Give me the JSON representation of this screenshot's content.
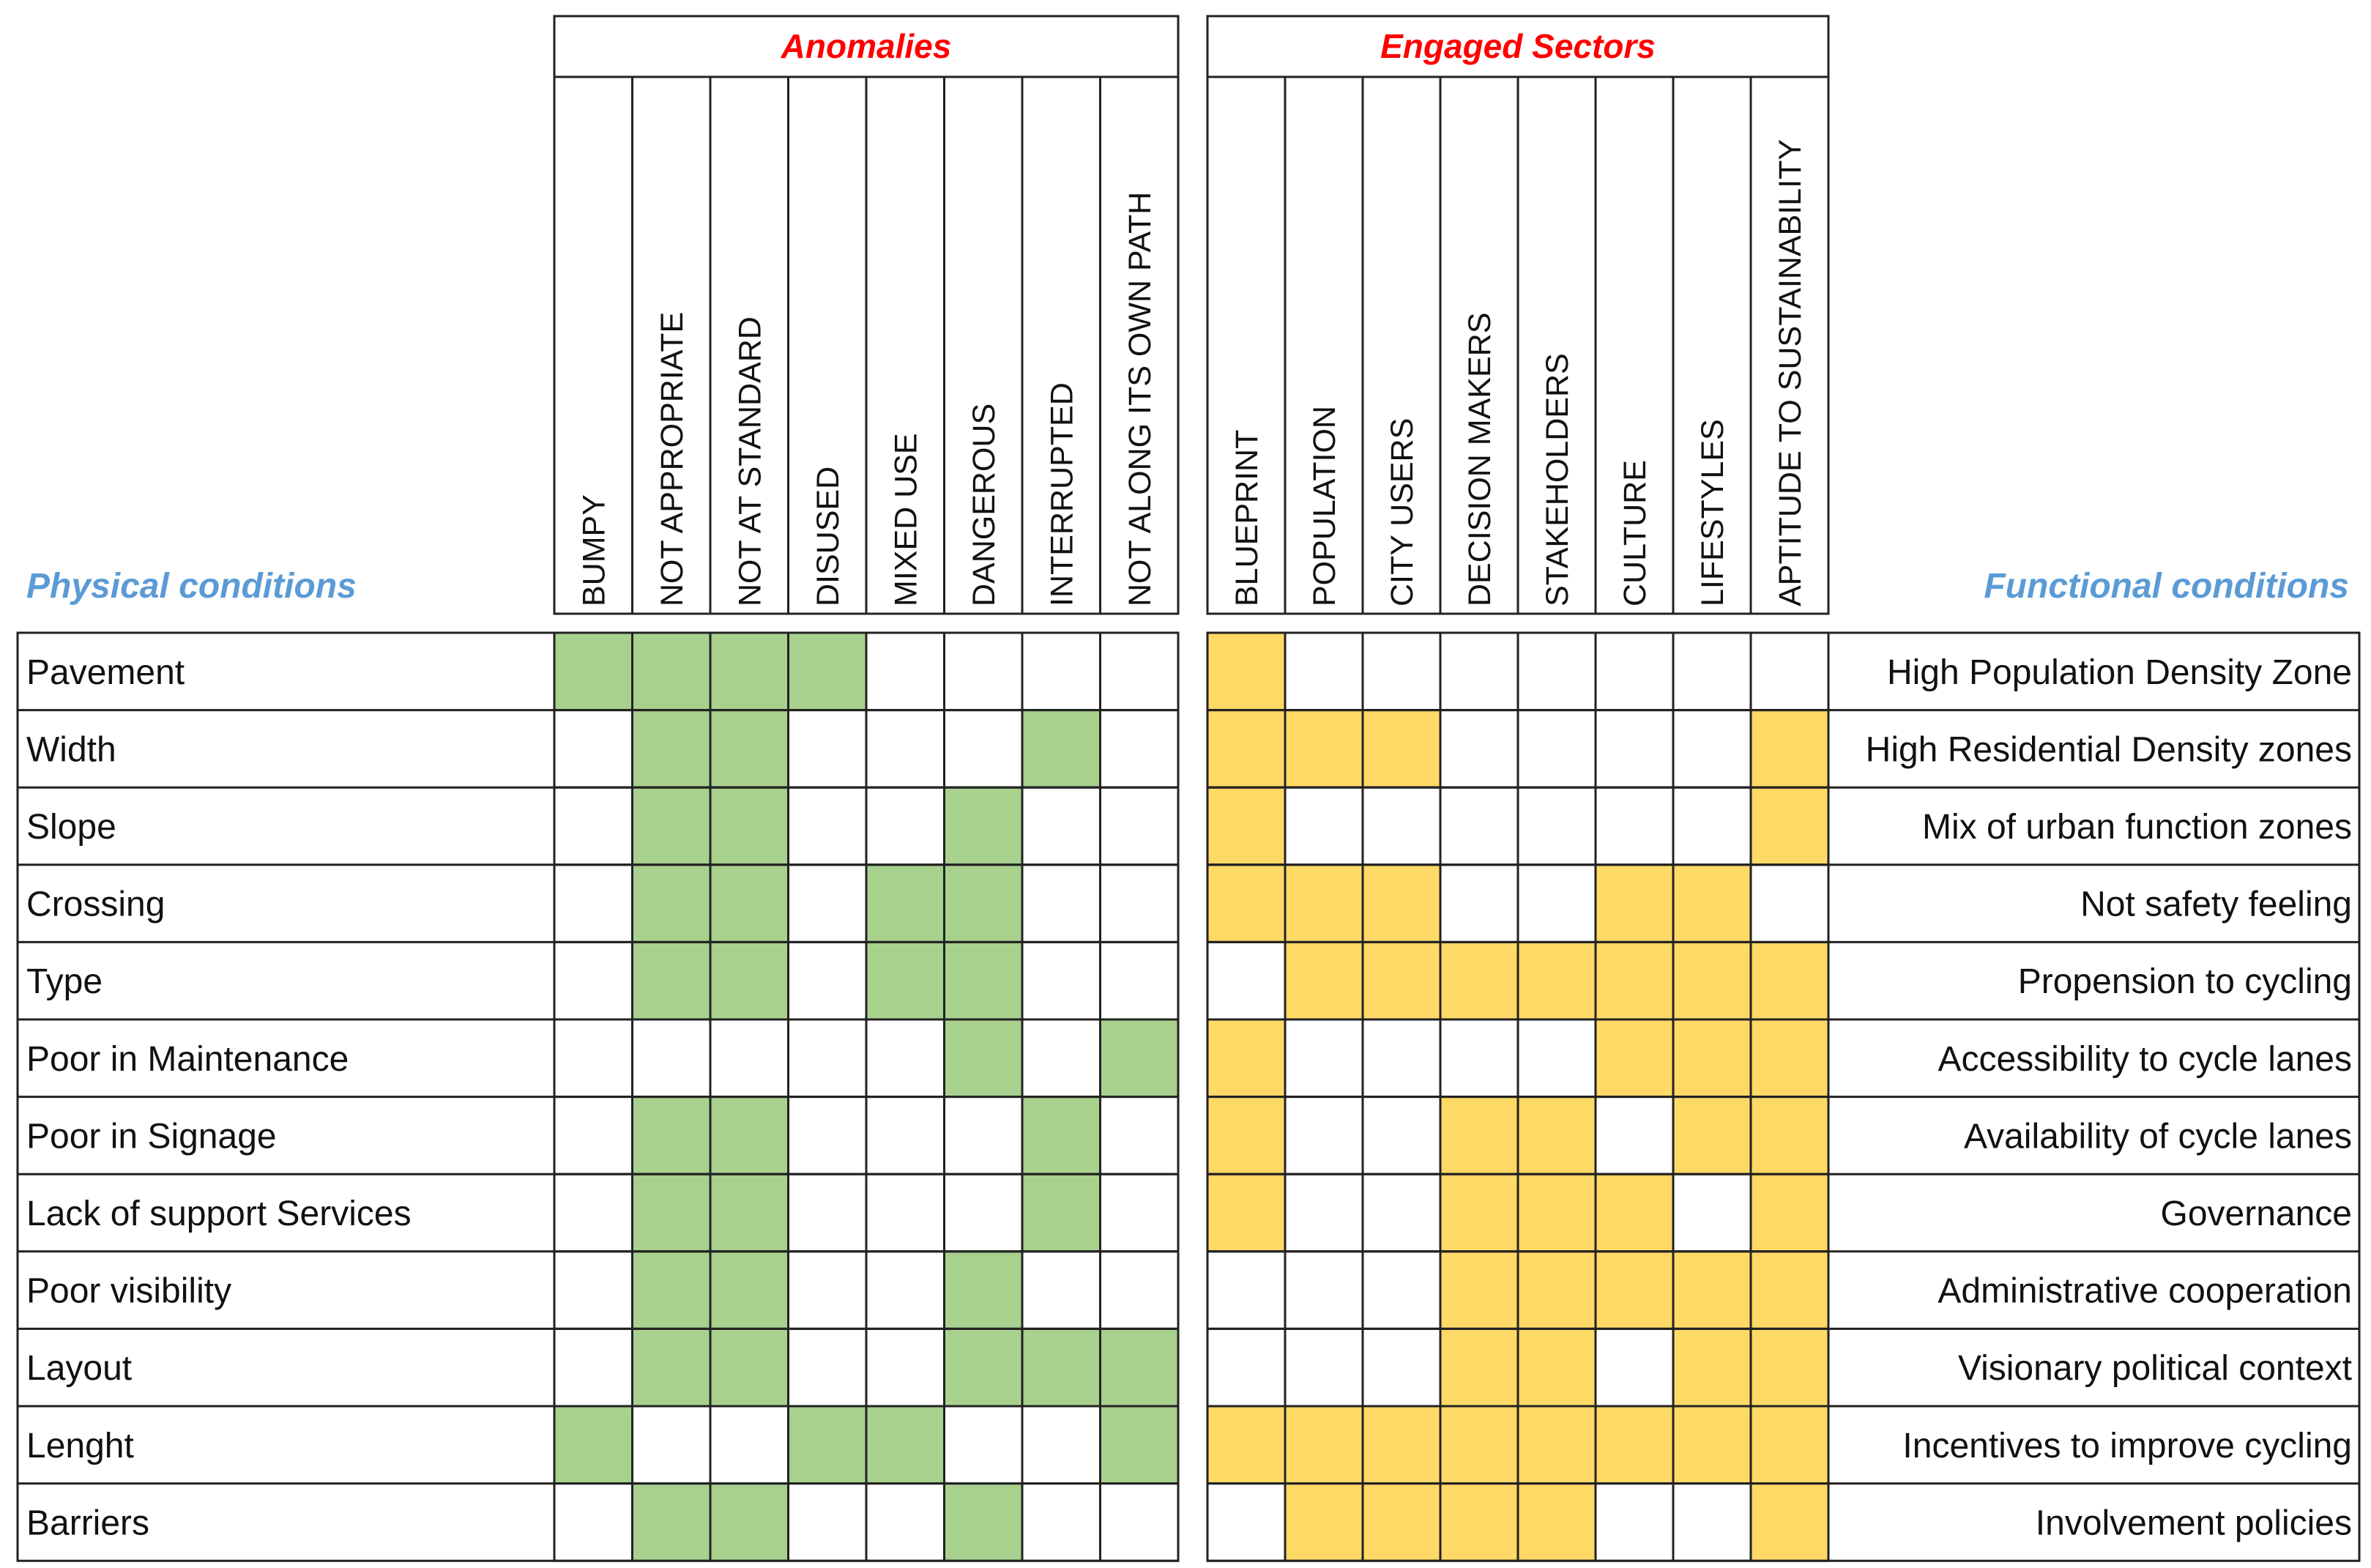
{
  "colors": {
    "anomaly_fill": "#a9d18e",
    "sector_fill": "#ffd966",
    "header_red": "#ff0000",
    "side_blue": "#5b9bd5"
  },
  "left_table": {
    "header": "Anomalies",
    "side_title": "Physical conditions",
    "columns": [
      "BUMPY",
      "NOT APPROPRIATE",
      "NOT AT STANDARD",
      "DISUSED",
      "MIXED USE",
      "DANGEROUS",
      "INTERRUPTED",
      "NOT ALONG ITS OWN PATH"
    ],
    "rows": [
      {
        "label": "Pavement",
        "cells": [
          1,
          1,
          1,
          1,
          0,
          0,
          0,
          0
        ]
      },
      {
        "label": "Width",
        "cells": [
          0,
          1,
          1,
          0,
          0,
          0,
          1,
          0
        ]
      },
      {
        "label": "Slope",
        "cells": [
          0,
          1,
          1,
          0,
          0,
          1,
          0,
          0
        ]
      },
      {
        "label": "Crossing",
        "cells": [
          0,
          1,
          1,
          0,
          1,
          1,
          0,
          0
        ]
      },
      {
        "label": "Type",
        "cells": [
          0,
          1,
          1,
          0,
          1,
          1,
          0,
          0
        ]
      },
      {
        "label": "Poor in  Maintenance",
        "cells": [
          0,
          0,
          0,
          0,
          0,
          1,
          0,
          1
        ]
      },
      {
        "label": "Poor in  Signage",
        "cells": [
          0,
          1,
          1,
          0,
          0,
          0,
          1,
          0
        ]
      },
      {
        "label": "Lack of support Services",
        "cells": [
          0,
          1,
          1,
          0,
          0,
          0,
          1,
          0
        ]
      },
      {
        "label": "Poor visibility",
        "cells": [
          0,
          1,
          1,
          0,
          0,
          1,
          0,
          0
        ]
      },
      {
        "label": "Layout",
        "cells": [
          0,
          1,
          1,
          0,
          0,
          1,
          1,
          1
        ]
      },
      {
        "label": "Lenght",
        "cells": [
          1,
          0,
          0,
          1,
          1,
          0,
          0,
          1
        ]
      },
      {
        "label": "Barriers",
        "cells": [
          0,
          1,
          1,
          0,
          0,
          1,
          0,
          0
        ]
      }
    ]
  },
  "right_table": {
    "header": "Engaged Sectors",
    "side_title": "Functional conditions",
    "columns": [
      "BLUEPRINT",
      "POPULATION",
      "CITY USERS",
      "DECISION MAKERS",
      "STAKEHOLDERS",
      "CULTURE",
      "LIFESTYLES",
      "APTITUDE TO SUSTAINABILITY"
    ],
    "rows": [
      {
        "label": "High Population Density Zone",
        "cells": [
          1,
          0,
          0,
          0,
          0,
          0,
          0,
          0
        ]
      },
      {
        "label": "High Residential Density zones",
        "cells": [
          1,
          1,
          1,
          0,
          0,
          0,
          0,
          1
        ]
      },
      {
        "label": "Mix of urban function zones",
        "cells": [
          1,
          0,
          0,
          0,
          0,
          0,
          0,
          1
        ]
      },
      {
        "label": "Not safety feeling",
        "cells": [
          1,
          1,
          1,
          0,
          0,
          1,
          1,
          0
        ]
      },
      {
        "label": "Propension to cycling",
        "cells": [
          0,
          1,
          1,
          1,
          1,
          1,
          1,
          1
        ]
      },
      {
        "label": "Accessibility to cycle lanes",
        "cells": [
          1,
          0,
          0,
          0,
          0,
          1,
          1,
          1
        ]
      },
      {
        "label": "Availability of cycle lanes",
        "cells": [
          1,
          0,
          0,
          1,
          1,
          0,
          1,
          1
        ]
      },
      {
        "label": "Governance",
        "cells": [
          1,
          0,
          0,
          1,
          1,
          1,
          0,
          1
        ]
      },
      {
        "label": "Administrative cooperation",
        "cells": [
          0,
          0,
          0,
          1,
          1,
          1,
          1,
          1
        ]
      },
      {
        "label": "Visionary  political context",
        "cells": [
          0,
          0,
          0,
          1,
          1,
          0,
          1,
          1
        ]
      },
      {
        "label": "Incentives to improve cycling",
        "cells": [
          1,
          1,
          1,
          1,
          1,
          1,
          1,
          1
        ]
      },
      {
        "label": "Involvement policies",
        "cells": [
          0,
          1,
          1,
          1,
          1,
          0,
          0,
          1
        ]
      }
    ]
  }
}
